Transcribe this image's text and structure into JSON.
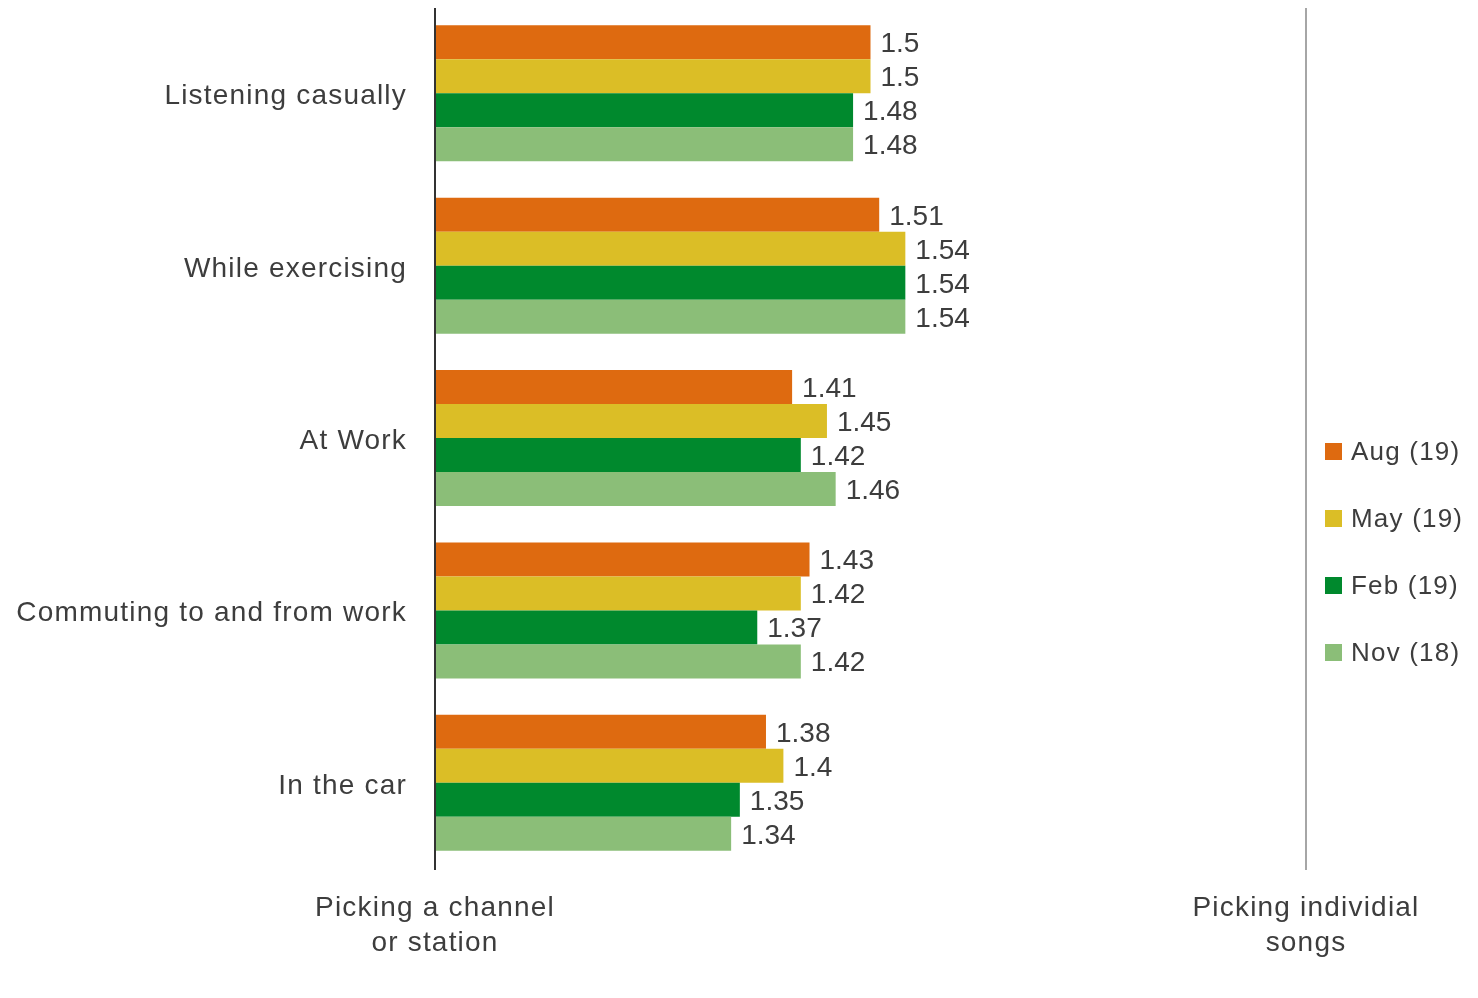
{
  "chart_data": {
    "type": "bar",
    "orientation": "horizontal",
    "categories": [
      "Listening casually",
      "While exercising",
      "At Work",
      "Commuting to and from work",
      "In the car"
    ],
    "series": [
      {
        "name": "Aug (19)",
        "color": "#de6a10",
        "values": [
          1.5,
          1.51,
          1.41,
          1.43,
          1.38
        ]
      },
      {
        "name": "May (19)",
        "color": "#dbbe26",
        "values": [
          1.5,
          1.54,
          1.45,
          1.42,
          1.4
        ]
      },
      {
        "name": "Feb (19)",
        "color": "#00892d",
        "values": [
          1.48,
          1.54,
          1.42,
          1.37,
          1.35
        ]
      },
      {
        "name": "Nov (18)",
        "color": "#8bbe78",
        "values": [
          1.48,
          1.54,
          1.46,
          1.42,
          1.34
        ]
      }
    ],
    "xlim": [
      1,
      2
    ],
    "tick_labels": "y",
    "ref_lines": [
      {
        "axis": "x",
        "value": 2,
        "label": "Picking individial songs",
        "color": "#a6a6a6"
      }
    ],
    "annotations": [
      "Picking a channel or station"
    ],
    "legend": "right",
    "data_labels": true
  }
}
